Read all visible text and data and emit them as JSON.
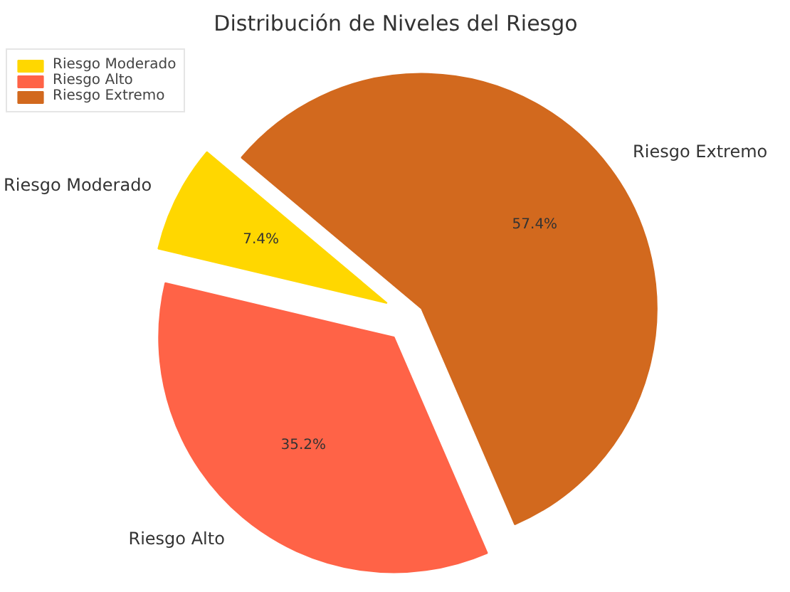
{
  "chart_data": {
    "type": "pie",
    "title": "Distribución de Niveles del Riesgo",
    "categories": [
      "Riesgo Moderado",
      "Riesgo Alto",
      "Riesgo Extremo"
    ],
    "values": [
      7.4,
      35.2,
      57.4
    ],
    "colors": [
      "#ffd700",
      "#ff6347",
      "#d2691e"
    ],
    "value_labels": [
      "7.4%",
      "35.2%",
      "57.4%"
    ],
    "legend": "top left"
  }
}
